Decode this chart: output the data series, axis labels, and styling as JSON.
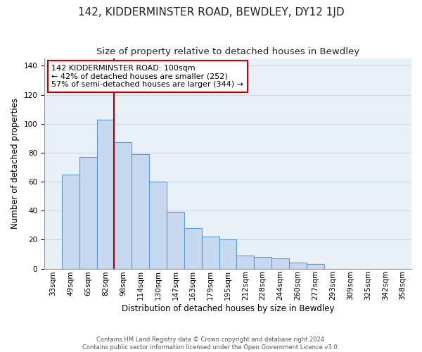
{
  "title": "142, KIDDERMINSTER ROAD, BEWDLEY, DY12 1JD",
  "subtitle": "Size of property relative to detached houses in Bewdley",
  "xlabel": "Distribution of detached houses by size in Bewdley",
  "ylabel": "Number of detached properties",
  "footer_line1": "Contains HM Land Registry data © Crown copyright and database right 2024.",
  "footer_line2": "Contains public sector information licensed under the Open Government Licence v3.0.",
  "bar_labels": [
    "33sqm",
    "49sqm",
    "65sqm",
    "82sqm",
    "98sqm",
    "114sqm",
    "130sqm",
    "147sqm",
    "163sqm",
    "179sqm",
    "195sqm",
    "212sqm",
    "228sqm",
    "244sqm",
    "260sqm",
    "277sqm",
    "293sqm",
    "309sqm",
    "325sqm",
    "342sqm",
    "358sqm"
  ],
  "bar_values": [
    0,
    65,
    77,
    103,
    87,
    79,
    60,
    39,
    28,
    22,
    20,
    9,
    8,
    7,
    4,
    3,
    0,
    0,
    0,
    0,
    0
  ],
  "bar_color": "#c6d9f0",
  "bar_edge_color": "#5b9bd5",
  "vline_x_index": 3,
  "vline_color": "#aa0000",
  "annotation_text": "142 KIDDERMINSTER ROAD: 100sqm\n← 42% of detached houses are smaller (252)\n57% of semi-detached houses are larger (344) →",
  "annotation_box_edge_color": "#cc0000",
  "annotation_box_face_color": "#ffffff",
  "ylim": [
    0,
    145
  ],
  "background_color": "#ffffff",
  "grid_color": "#c8d8e8",
  "title_fontsize": 11,
  "subtitle_fontsize": 9.5,
  "axis_label_fontsize": 8.5,
  "tick_fontsize": 7.5,
  "annotation_fontsize": 8
}
